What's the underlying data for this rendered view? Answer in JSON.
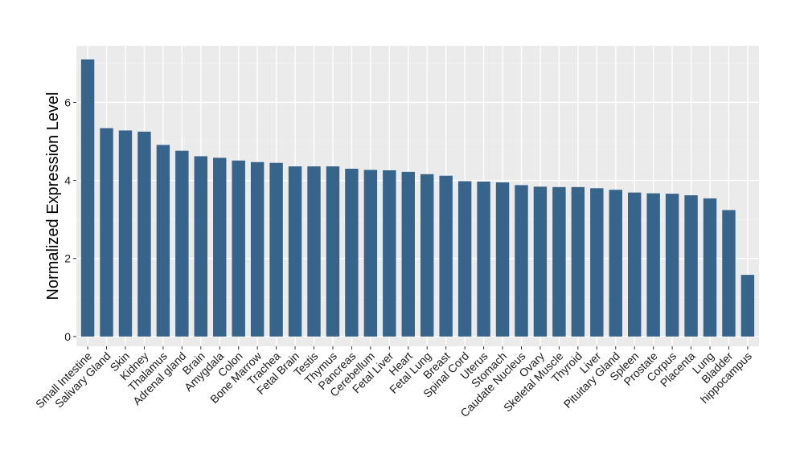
{
  "chart_data": {
    "type": "bar",
    "title": "",
    "xlabel": "",
    "ylabel": "Normalized Expression Level",
    "ylim": [
      -0.25,
      7.45
    ],
    "yticks": [
      0,
      2,
      4,
      6
    ],
    "grid": true,
    "legend": "none",
    "bar_color": "#36648b",
    "panel_color": "#ebebeb",
    "categories": [
      "Small Intestine",
      "Salivary Gland",
      "Skin",
      "Kidney",
      "Thalamus",
      "Adrenal gland",
      "Brain",
      "Amygdala",
      "Colon",
      "Bone Marrow",
      "Trachea",
      "Fetal Brain",
      "Testis",
      "Thymus",
      "Pancreas",
      "Cerebellum",
      "Fetal Liver",
      "Heart",
      "Fetal Lung",
      "Breast",
      "Spinal Cord",
      "Uterus",
      "Stomach",
      "Caudate Nucleus",
      "Ovary",
      "Skeletal Muscle",
      "Thyroid",
      "Liver",
      "Pituitary Gland",
      "Spleen",
      "Prostate",
      "Corpus",
      "Placenta",
      "Lung",
      "Bladder",
      "hippocampus"
    ],
    "values": [
      7.1,
      5.34,
      5.28,
      5.25,
      4.91,
      4.76,
      4.62,
      4.58,
      4.51,
      4.47,
      4.45,
      4.36,
      4.36,
      4.36,
      4.3,
      4.27,
      4.26,
      4.22,
      4.16,
      4.12,
      3.98,
      3.97,
      3.95,
      3.88,
      3.84,
      3.83,
      3.83,
      3.8,
      3.76,
      3.69,
      3.67,
      3.66,
      3.62,
      3.54,
      3.24,
      1.58
    ]
  }
}
